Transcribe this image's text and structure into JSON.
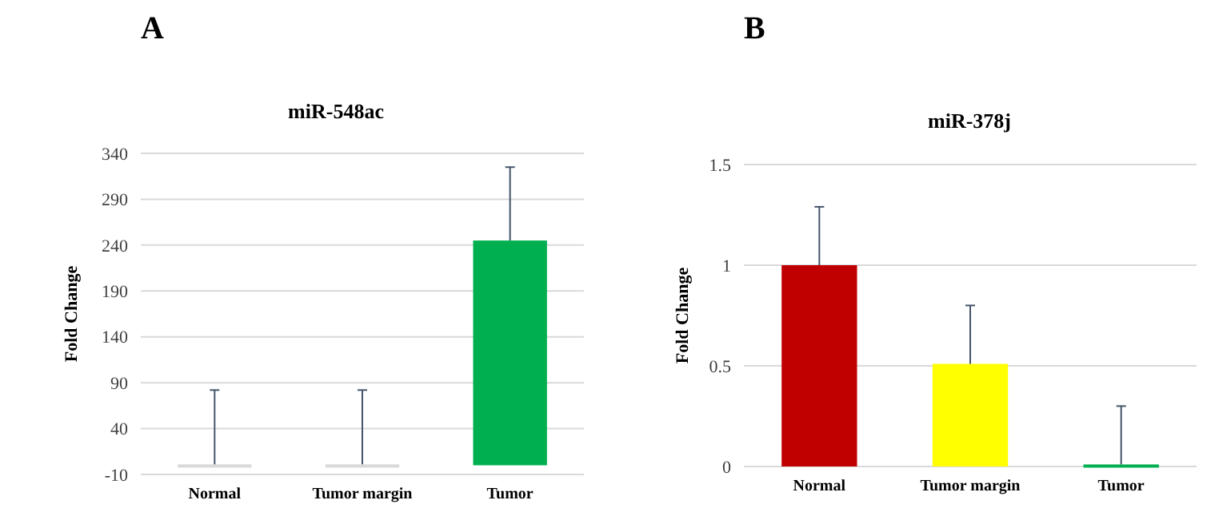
{
  "chart_data": [
    {
      "type": "bar",
      "title": "miR-548ac",
      "ylabel": "Fold Change",
      "annotations": [
        "A"
      ],
      "categories": [
        "Normal",
        "Tumor margin",
        "Tumor"
      ],
      "values": [
        1,
        1,
        245
      ],
      "colors": [
        "#d9d9d9",
        "#d9d9d9",
        "#00b050"
      ],
      "errors": [
        [
          1,
          82
        ],
        [
          1,
          82
        ],
        [
          245,
          325
        ]
      ],
      "ylim": [
        -10,
        340
      ],
      "yticks": [
        -10,
        40,
        90,
        140,
        190,
        240,
        290,
        340
      ],
      "grid": "y"
    },
    {
      "type": "bar",
      "title": "miR-378j",
      "ylabel": "Fold Change",
      "annotations": [
        "B"
      ],
      "categories": [
        "Normal",
        "Tumor margin",
        "Tumor"
      ],
      "values": [
        1,
        0.51,
        0.01
      ],
      "colors": [
        "#c00000",
        "#ffff00",
        "#00b050"
      ],
      "errors": [
        [
          1,
          1.29
        ],
        [
          0.51,
          0.8
        ],
        [
          0.01,
          0.3
        ]
      ],
      "ylim": [
        0,
        1.5
      ],
      "yticks": [
        0,
        0.5,
        1,
        1.5
      ],
      "grid": "y"
    }
  ]
}
